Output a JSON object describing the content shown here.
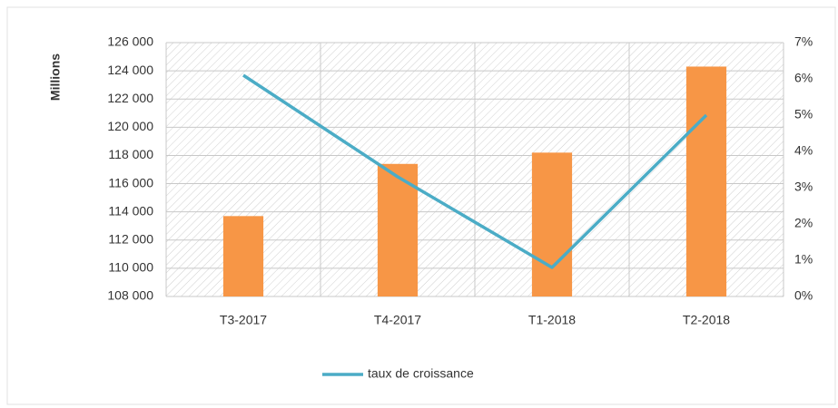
{
  "chart_data": {
    "type": "bar-line",
    "y_label": "Millions",
    "categories": [
      "T3-2017",
      "T4-2017",
      "T1-2018",
      "T2-2018"
    ],
    "series": [
      {
        "type": "bar",
        "color": "#f79646",
        "values": [
          113700,
          117400,
          118200,
          124300
        ]
      },
      {
        "type": "line",
        "name": "taux de croissance",
        "color": "#4bacc6",
        "axis": "y2",
        "values": [
          6.1,
          3.3,
          0.8,
          5.0
        ]
      }
    ],
    "ylim": [
      108000,
      126000
    ],
    "yticks": [
      {
        "value": 108000,
        "label": "108 000"
      },
      {
        "value": 110000,
        "label": "110 000"
      },
      {
        "value": 112000,
        "label": "112 000"
      },
      {
        "value": 114000,
        "label": "114 000"
      },
      {
        "value": 116000,
        "label": "116 000"
      },
      {
        "value": 118000,
        "label": "118 000"
      },
      {
        "value": 120000,
        "label": "120 000"
      },
      {
        "value": 122000,
        "label": "122 000"
      },
      {
        "value": 124000,
        "label": "124 000"
      },
      {
        "value": 126000,
        "label": "126 000"
      }
    ],
    "y2lim": [
      0,
      7
    ],
    "y2ticks": [
      {
        "value": 0,
        "label": "0%"
      },
      {
        "value": 1,
        "label": "1%"
      },
      {
        "value": 2,
        "label": "2%"
      },
      {
        "value": 3,
        "label": "3%"
      },
      {
        "value": 4,
        "label": "4%"
      },
      {
        "value": 5,
        "label": "5%"
      },
      {
        "value": 6,
        "label": "6%"
      },
      {
        "value": 7,
        "label": "7%"
      }
    ],
    "grid": true,
    "legend": "bottom"
  }
}
